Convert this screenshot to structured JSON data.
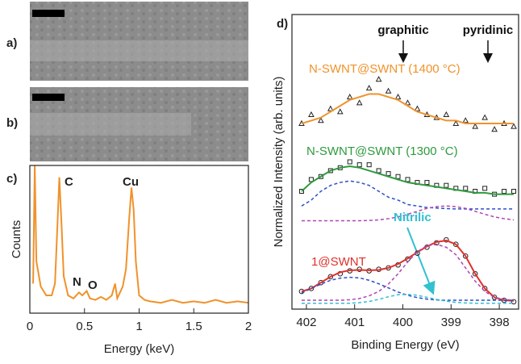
{
  "panels": [
    "a)",
    "b)",
    "c)",
    "d)"
  ],
  "chart_data": [
    {
      "type": "line",
      "xlabel": "Energy (keV)",
      "ylabel": "Counts",
      "xlim": [
        0,
        2
      ],
      "xticks": [
        0,
        0.5,
        1,
        1.5,
        2
      ],
      "ylim": [
        0,
        100
      ],
      "annotations": [
        "C",
        "Cu",
        "N",
        "O"
      ],
      "x": [
        0.03,
        0.045,
        0.06,
        0.1,
        0.15,
        0.2,
        0.23,
        0.25,
        0.27,
        0.29,
        0.31,
        0.35,
        0.4,
        0.45,
        0.48,
        0.52,
        0.55,
        0.6,
        0.65,
        0.7,
        0.75,
        0.78,
        0.8,
        0.85,
        0.88,
        0.91,
        0.93,
        0.95,
        0.97,
        1.0,
        1.05,
        1.1,
        1.2,
        1.3,
        1.4,
        1.5,
        1.6,
        1.7,
        1.8,
        1.9,
        2.0
      ],
      "series": [
        {
          "color": "#f0922a",
          "style": "solid",
          "values": [
            20,
            100,
            35,
            18,
            12,
            12,
            20,
            55,
            92,
            60,
            25,
            12,
            10,
            14,
            12,
            15,
            10,
            9,
            11,
            9,
            12,
            20,
            10,
            18,
            30,
            65,
            85,
            70,
            35,
            12,
            9,
            8,
            7,
            9,
            7,
            8,
            7,
            9,
            7,
            8,
            7
          ]
        }
      ]
    },
    {
      "type": "line",
      "xlabel": "Binding Energy (eV)",
      "ylabel": "Normalized Intensity (arb. units)",
      "xlim": [
        402.3,
        397.6
      ],
      "xticks": [
        402,
        401,
        400,
        399,
        398
      ],
      "ylim": [
        0,
        100
      ],
      "annotations": [
        "graphitic",
        "pyridinic",
        "N-SWNT@SWNT (1400 °C)",
        "N-SWNT@SWNT (1300 °C)",
        "1@SWNT",
        "Nitrilic"
      ],
      "x": [
        402.1,
        401.9,
        401.7,
        401.5,
        401.3,
        401.1,
        400.9,
        400.7,
        400.5,
        400.3,
        400.1,
        399.9,
        399.7,
        399.5,
        399.3,
        399.1,
        398.9,
        398.7,
        398.5,
        398.3,
        398.1,
        397.9,
        397.7
      ],
      "series": [
        {
          "color": "#222222",
          "style": "markers",
          "marker": "triangle",
          "values": [
            63,
            66,
            64,
            68,
            67,
            72,
            70,
            75,
            78,
            74,
            72,
            70,
            68,
            66,
            65,
            66,
            63,
            64,
            62,
            65,
            61,
            63,
            62
          ]
        },
        {
          "color": "#f0922a",
          "style": "solid",
          "values": [
            63,
            64,
            65,
            67,
            69,
            71,
            72,
            73,
            73,
            72,
            71,
            69,
            67,
            66,
            65,
            64,
            64,
            63,
            63,
            63,
            63,
            63,
            63
          ]
        },
        {
          "color": "#222222",
          "style": "markers",
          "marker": "square",
          "values": [
            40,
            44,
            45,
            47,
            48,
            50,
            49,
            49,
            47,
            46,
            45,
            44,
            43,
            43,
            42,
            42,
            41,
            41,
            40,
            41,
            39,
            40,
            40
          ]
        },
        {
          "color": "#2e9a3e",
          "style": "solid",
          "values": [
            40,
            43,
            45,
            47,
            48,
            48.5,
            48,
            47,
            46,
            45,
            44,
            43,
            42.5,
            42,
            41.5,
            41,
            40.5,
            40,
            39.5,
            39.5,
            39,
            39,
            39
          ]
        },
        {
          "color": "#2d4fc4",
          "style": "dashed",
          "values": [
            35,
            37,
            40,
            42,
            43,
            43.5,
            43,
            42,
            40,
            38,
            37,
            35.5,
            35,
            34.5,
            34.3,
            34.1,
            34,
            34,
            34,
            34,
            34,
            34,
            34
          ]
        },
        {
          "color": "#b044b4",
          "style": "dashed",
          "values": [
            30,
            30,
            30,
            30,
            30,
            30,
            30,
            30.1,
            30.3,
            30.7,
            31.3,
            32.2,
            33.2,
            34.2,
            34.8,
            35,
            34.8,
            34.2,
            33.2,
            32.2,
            31.3,
            30.7,
            30.3
          ]
        },
        {
          "color": "#222222",
          "style": "markers",
          "marker": "circle",
          "values": [
            6,
            7,
            9,
            11,
            12,
            13,
            13.5,
            13,
            13.5,
            14,
            15,
            17,
            19,
            21,
            22.5,
            23.5,
            22,
            18,
            12,
            7,
            4,
            3,
            2.5
          ]
        },
        {
          "color": "#e0302a",
          "style": "solid",
          "values": [
            6,
            7,
            9,
            11,
            12.5,
            13.2,
            13.3,
            13.2,
            13.3,
            14,
            15.3,
            17.2,
            19.3,
            21.3,
            22.8,
            23.3,
            22,
            18,
            12,
            7,
            4,
            3,
            2.8
          ]
        },
        {
          "color": "#2d4fc4",
          "style": "dashed",
          "values": [
            5.5,
            7,
            8.5,
            9.8,
            10.5,
            10.8,
            10.6,
            9.8,
            8.6,
            7.2,
            5.8,
            4.7,
            3.9,
            3.4,
            3.1,
            3,
            3,
            3,
            3,
            3,
            3,
            3,
            3
          ]
        },
        {
          "color": "#b044b4",
          "style": "dashed",
          "values": [
            3,
            3,
            3,
            3,
            3,
            3.2,
            3.6,
            4.5,
            6,
            8.5,
            12,
            16,
            19.5,
            21.5,
            22,
            21,
            18.5,
            14,
            9.5,
            6,
            4,
            3.3,
            3
          ]
        },
        {
          "color": "#33c0d0",
          "style": "dashed",
          "values": [
            2,
            2,
            2,
            2,
            2,
            2,
            2.2,
            2.6,
            3.3,
            4.2,
            4.9,
            5,
            4.7,
            4,
            3.3,
            2.7,
            2.3,
            2.1,
            2,
            2,
            2,
            2,
            2
          ]
        }
      ]
    }
  ]
}
